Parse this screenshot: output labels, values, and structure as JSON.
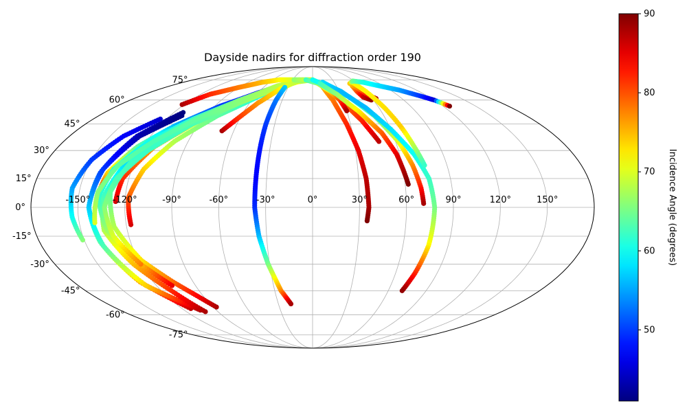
{
  "chart_data": {
    "type": "scatter",
    "projection": "mollweide",
    "title": "Dayside nadirs for diffraction order 190",
    "grid": true,
    "x_range": [
      -180,
      180
    ],
    "y_range": [
      -90,
      90
    ],
    "lon_ticks": [
      {
        "value": -150,
        "label": "-150°"
      },
      {
        "value": -120,
        "label": "-120°"
      },
      {
        "value": -90,
        "label": "-90°"
      },
      {
        "value": -60,
        "label": "-60°"
      },
      {
        "value": -30,
        "label": "-30°"
      },
      {
        "value": 0,
        "label": "0°"
      },
      {
        "value": 30,
        "label": "30°"
      },
      {
        "value": 60,
        "label": "60°"
      },
      {
        "value": 90,
        "label": "90°"
      },
      {
        "value": 120,
        "label": "120°"
      },
      {
        "value": 150,
        "label": "150°"
      }
    ],
    "lat_ticks": [
      {
        "value": 75,
        "label": "75°"
      },
      {
        "value": 60,
        "label": "60°"
      },
      {
        "value": 45,
        "label": "45°"
      },
      {
        "value": 30,
        "label": "30°"
      },
      {
        "value": 15,
        "label": "15°"
      },
      {
        "value": 0,
        "label": "0°"
      },
      {
        "value": -15,
        "label": "-15°"
      },
      {
        "value": -30,
        "label": "-30°"
      },
      {
        "value": -45,
        "label": "-45°"
      },
      {
        "value": -60,
        "label": "-60°"
      },
      {
        "value": -75,
        "label": "-75°"
      }
    ],
    "colorbar": {
      "label": "Incidence Angle (degrees)",
      "range": [
        41,
        90
      ],
      "colormap": "jet",
      "ticks": [
        {
          "value": 50,
          "label": "50"
        },
        {
          "value": 60,
          "label": "60"
        },
        {
          "value": 70,
          "label": "70"
        },
        {
          "value": 80,
          "label": "80"
        },
        {
          "value": 90,
          "label": "90"
        }
      ]
    },
    "tracks": [
      {
        "points": [
          [
            -112,
            -56,
            87
          ],
          [
            -130,
            -40,
            76
          ],
          [
            -140,
            -18,
            64
          ],
          [
            -143,
            0,
            58
          ],
          [
            -140,
            18,
            51
          ],
          [
            -130,
            38,
            44
          ],
          [
            -112,
            52,
            41
          ]
        ]
      },
      {
        "points": [
          [
            -105,
            -57,
            88
          ],
          [
            -128,
            -42,
            74
          ],
          [
            -139,
            -20,
            63
          ],
          [
            -143,
            0,
            57
          ],
          [
            -139,
            20,
            50
          ],
          [
            -128,
            38,
            43
          ],
          [
            -110,
            50,
            41
          ]
        ]
      },
      {
        "points": [
          [
            -126,
            3,
            86
          ],
          [
            -124,
            15,
            82
          ],
          [
            -112,
            32,
            76
          ],
          [
            -90,
            48,
            70
          ],
          [
            -65,
            60,
            64
          ],
          [
            -40,
            70,
            60
          ],
          [
            -15,
            75,
            56
          ]
        ]
      },
      {
        "points": [
          [
            -138,
            5,
            86
          ],
          [
            -135,
            18,
            74
          ],
          [
            -124,
            32,
            64
          ],
          [
            -108,
            44,
            56
          ],
          [
            -85,
            56,
            50
          ],
          [
            -60,
            65,
            47
          ],
          [
            -35,
            72,
            46
          ]
        ]
      },
      {
        "points": [
          [
            -117,
            -9,
            86
          ],
          [
            -118,
            5,
            80
          ],
          [
            -112,
            20,
            74
          ],
          [
            -100,
            35,
            68
          ],
          [
            -80,
            50,
            64
          ],
          [
            -55,
            63,
            61
          ],
          [
            -28,
            72,
            59
          ]
        ]
      },
      {
        "points": [
          [
            -102,
            -58,
            88
          ],
          [
            -112,
            -45,
            82
          ],
          [
            -125,
            -30,
            75
          ],
          [
            -135,
            -12,
            68
          ],
          [
            -134,
            5,
            63
          ],
          [
            -126,
            22,
            58
          ],
          [
            -112,
            36,
            56
          ],
          [
            -92,
            50,
            56
          ],
          [
            -65,
            62,
            58
          ],
          [
            -38,
            71,
            60
          ],
          [
            -10,
            75,
            63
          ]
        ]
      },
      {
        "points": [
          [
            -87,
            -55,
            88
          ],
          [
            -95,
            -48,
            84
          ],
          [
            -105,
            -40,
            79
          ],
          [
            -118,
            -28,
            73
          ],
          [
            -128,
            -10,
            68
          ],
          [
            -130,
            8,
            64
          ],
          [
            -122,
            25,
            62
          ],
          [
            -105,
            40,
            61
          ],
          [
            -82,
            54,
            62
          ],
          [
            -55,
            65,
            64
          ],
          [
            -25,
            73,
            67
          ],
          [
            0,
            75,
            70
          ]
        ]
      },
      {
        "points": [
          [
            -108,
            -42,
            85
          ],
          [
            -120,
            -30,
            75
          ],
          [
            -133,
            -12,
            67
          ],
          [
            -137,
            5,
            62
          ],
          [
            -132,
            20,
            60
          ],
          [
            -118,
            35,
            60
          ],
          [
            -98,
            48,
            62
          ],
          [
            -72,
            60,
            65
          ],
          [
            -45,
            70,
            68
          ],
          [
            -20,
            75,
            72
          ]
        ]
      },
      {
        "points": [
          [
            -120,
            -30,
            78
          ],
          [
            -130,
            -15,
            70
          ],
          [
            -133,
            0,
            66
          ],
          [
            -128,
            15,
            63
          ],
          [
            -115,
            30,
            62
          ],
          [
            -95,
            45,
            63
          ],
          [
            -70,
            58,
            66
          ],
          [
            -45,
            68,
            69
          ],
          [
            -18,
            74,
            72
          ]
        ]
      },
      {
        "points": [
          [
            -140,
            -8,
            70
          ],
          [
            -138,
            8,
            66
          ],
          [
            -130,
            22,
            64
          ],
          [
            -115,
            35,
            63
          ],
          [
            -95,
            48,
            64
          ],
          [
            -70,
            60,
            66
          ],
          [
            -45,
            69,
            68
          ],
          [
            -20,
            74,
            70
          ]
        ]
      },
      {
        "points": [
          [
            -151,
            -17,
            66
          ],
          [
            -154,
            -5,
            60
          ],
          [
            -155,
            10,
            55
          ],
          [
            -150,
            25,
            50
          ],
          [
            -140,
            38,
            47
          ],
          [
            -125,
            48,
            45
          ]
        ]
      },
      {
        "points": [
          [
            -122,
            57,
            88
          ],
          [
            -110,
            64,
            82
          ],
          [
            -90,
            69,
            78
          ],
          [
            -70,
            73,
            75
          ],
          [
            -50,
            75,
            72
          ],
          [
            -30,
            75,
            70
          ]
        ]
      },
      {
        "points": [
          [
            -69,
            41,
            88
          ],
          [
            -62,
            48,
            82
          ],
          [
            -52,
            58,
            77
          ],
          [
            -38,
            68,
            72
          ],
          [
            -22,
            74,
            68
          ],
          [
            -8,
            75,
            65
          ]
        ]
      },
      {
        "points": [
          [
            -34,
            69,
            57
          ],
          [
            -36,
            60,
            53
          ],
          [
            -37,
            45,
            50
          ],
          [
            -37,
            30,
            48
          ],
          [
            -37,
            15,
            47
          ],
          [
            -37,
            0,
            49
          ],
          [
            -35,
            -15,
            56
          ],
          [
            -31,
            -30,
            65
          ],
          [
            -25,
            -45,
            77
          ],
          [
            -19,
            -53,
            88
          ]
        ]
      },
      {
        "points": [
          [
            -28,
            75,
            66
          ],
          [
            -14,
            75,
            68
          ],
          [
            0,
            75,
            70
          ],
          [
            12,
            70,
            75
          ],
          [
            20,
            60,
            78
          ],
          [
            27,
            45,
            82
          ],
          [
            32,
            30,
            85
          ],
          [
            35,
            15,
            87
          ],
          [
            36,
            0,
            88
          ],
          [
            35,
            -7,
            90
          ]
        ]
      },
      {
        "points": [
          [
            0,
            75,
            72
          ],
          [
            15,
            70,
            74
          ],
          [
            28,
            60,
            78
          ],
          [
            40,
            47,
            82
          ],
          [
            48,
            35,
            87
          ]
        ]
      },
      {
        "points": [
          [
            -10,
            75,
            62
          ],
          [
            8,
            72,
            66
          ],
          [
            20,
            66,
            73
          ],
          [
            27,
            60,
            80
          ],
          [
            30,
            53,
            88
          ]
        ]
      },
      {
        "points": [
          [
            0,
            75,
            60
          ],
          [
            20,
            70,
            60
          ],
          [
            38,
            62,
            61
          ],
          [
            52,
            50,
            64
          ],
          [
            62,
            35,
            70
          ],
          [
            67,
            22,
            77
          ],
          [
            70,
            10,
            83
          ],
          [
            71,
            2,
            88
          ]
        ]
      },
      {
        "points": [
          [
            14,
            73,
            58
          ],
          [
            32,
            66,
            56
          ],
          [
            48,
            55,
            56
          ],
          [
            60,
            42,
            58
          ],
          [
            70,
            28,
            60
          ],
          [
            76,
            15,
            62
          ],
          [
            78,
            0,
            65
          ],
          [
            77,
            -20,
            72
          ],
          [
            74,
            -35,
            82
          ],
          [
            71,
            -45,
            89
          ]
        ]
      },
      {
        "points": [
          [
            10,
            72,
            62
          ],
          [
            26,
            64,
            66
          ],
          [
            40,
            53,
            72
          ],
          [
            52,
            40,
            79
          ],
          [
            58,
            28,
            85
          ],
          [
            62,
            12,
            90
          ]
        ]
      },
      {
        "points": [
          [
            50,
            70,
            76
          ],
          [
            50,
            66,
            80
          ],
          [
            52,
            62,
            86
          ],
          [
            58,
            60,
            89
          ]
        ]
      },
      {
        "points": [
          [
            50,
            72,
            74
          ],
          [
            55,
            68,
            78
          ],
          [
            60,
            63,
            84
          ],
          [
            64,
            61,
            88
          ]
        ]
      },
      {
        "points": [
          [
            55,
            73,
            72
          ],
          [
            60,
            66,
            72
          ],
          [
            65,
            55,
            73
          ],
          [
            69,
            43,
            74
          ],
          [
            72,
            32,
            68
          ],
          [
            75,
            22,
            62
          ]
        ]
      },
      {
        "points": [
          [
            54,
            73,
            70
          ],
          [
            58,
            74,
            65
          ],
          [
            70,
            73,
            61
          ],
          [
            85,
            70,
            58
          ],
          [
            100,
            67,
            55
          ],
          [
            112,
            63,
            50
          ],
          [
            120,
            60,
            45
          ],
          [
            126,
            56,
            90
          ]
        ]
      }
    ]
  }
}
